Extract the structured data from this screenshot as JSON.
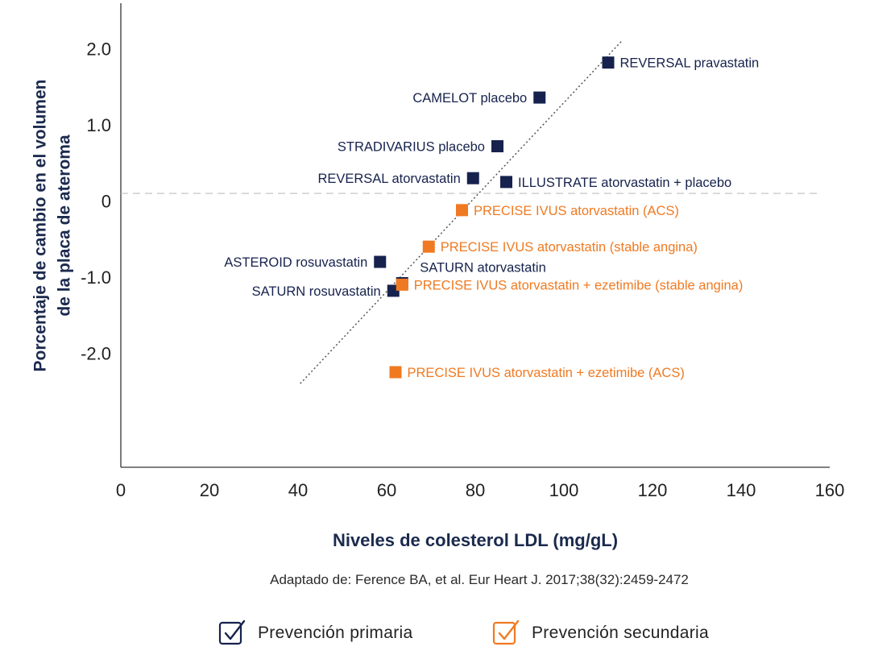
{
  "chart_data": {
    "type": "scatter",
    "xlabel": "Niveles de colesterol LDL (mg/gL)",
    "ylabel_lines": [
      "Porcentaje de cambio en el volumen",
      "de la placa de ateroma"
    ],
    "xlim": [
      0,
      160
    ],
    "ylim": [
      -3.5,
      2.6
    ],
    "x_ticks": [
      0,
      20,
      40,
      60,
      80,
      100,
      120,
      140,
      160
    ],
    "y_ticks": [
      {
        "value": 2.0,
        "label": "2.0"
      },
      {
        "value": 1.0,
        "label": "1.0"
      },
      {
        "value": 0,
        "label": "0"
      },
      {
        "value": -1.0,
        "label": "-1.0"
      },
      {
        "value": -2.0,
        "label": "-2.0"
      }
    ],
    "reference_line_y": 0.1,
    "trendline": {
      "x": [
        40.5,
        113
      ],
      "y": [
        -2.4,
        2.1
      ]
    },
    "series": [
      {
        "name": "Prevención primaria",
        "color": "#16224d",
        "points": [
          {
            "x": 110,
            "y": 1.82,
            "label": "REVERSAL pravastatin",
            "label_side": "right"
          },
          {
            "x": 94.5,
            "y": 1.36,
            "label": "CAMELOT placebo",
            "label_side": "left"
          },
          {
            "x": 85,
            "y": 0.72,
            "label": "STRADIVARIUS placebo",
            "label_side": "left"
          },
          {
            "x": 79.5,
            "y": 0.3,
            "label": "REVERSAL atorvastatin",
            "label_side": "left"
          },
          {
            "x": 87,
            "y": 0.25,
            "label": "ILLUSTRATE atorvastatin + placebo",
            "label_side": "right"
          },
          {
            "x": 58.5,
            "y": -0.8,
            "label": "ASTEROID rosuvastatin",
            "label_side": "left"
          },
          {
            "x": 61.5,
            "y": -1.18,
            "label": "SATURN rosuvastatin",
            "label_side": "left"
          },
          {
            "x": 63.5,
            "y": -1.08,
            "label": "SATURN atorvastatin",
            "label_side": "above-right"
          }
        ]
      },
      {
        "name": "Prevención secundaria",
        "color": "#f07a22",
        "points": [
          {
            "x": 77,
            "y": -0.12,
            "label": "PRECISE IVUS atorvastatin (ACS)",
            "label_side": "right"
          },
          {
            "x": 69.5,
            "y": -0.6,
            "label": "PRECISE IVUS atorvastatin (stable angina)",
            "label_side": "right"
          },
          {
            "x": 63.5,
            "y": -1.1,
            "label": "PRECISE IVUS atorvastatin + ezetimibe (stable angina)",
            "label_side": "right"
          },
          {
            "x": 62,
            "y": -2.25,
            "label": "PRECISE IVUS atorvastatin + ezetimibe (ACS)",
            "label_side": "right"
          }
        ]
      }
    ]
  },
  "source": "Adaptado de: Ference BA, et al. Eur Heart J. 2017;38(32):2459-2472",
  "legend": [
    {
      "label": "Prevención primaria",
      "color": "#16224d"
    },
    {
      "label": "Prevención secundaria",
      "color": "#f07a22"
    }
  ]
}
